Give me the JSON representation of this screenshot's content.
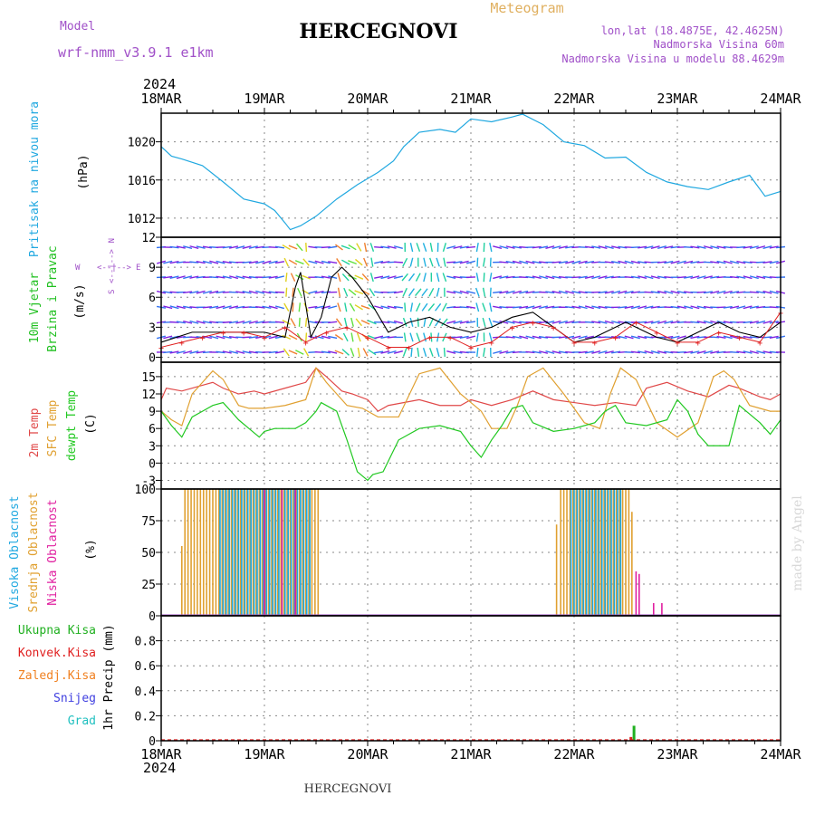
{
  "header": {
    "model_label": "Model",
    "model_name": "wrf-nmm_v3.9.1 e1km",
    "title": "HERCEGNOVI",
    "product": "Meteogram",
    "coords": "lon,lat (18.4875E, 42.4625N)",
    "elevation": "Nadmorska Visina 60m",
    "model_elevation": "Nadmorska Visina u modelu 88.4629m",
    "credit": "made by Angel",
    "footer_title": "HERCEGNOVI"
  },
  "colors": {
    "purple": "#a050c8",
    "orange": "#e0b060",
    "pressure": "#20a8e0",
    "wind_label": "#20c020",
    "t2m": "#e04848",
    "sfc": "#e0a030",
    "dew": "#20c820",
    "high_cloud": "#20a8e0",
    "mid_cloud": "#e0a030",
    "low_cloud": "#e020a0",
    "total_rain": "#20b020",
    "conv_rain": "#e02020",
    "frz_rain": "#f08020",
    "snow": "#4040e0",
    "hail": "#20c0c0",
    "gust": "#e02020"
  },
  "time_axis": {
    "year": "2024",
    "ticks": [
      "18MAR",
      "19MAR",
      "20MAR",
      "21MAR",
      "22MAR",
      "23MAR",
      "24MAR"
    ],
    "bottom_year": "2024"
  },
  "panels": {
    "pressure": {
      "label": "Pritisak na nivou mora",
      "unit": "(hPa)"
    },
    "wind": {
      "label1": "10m Vjetar",
      "label2": "Brzina i Pravac",
      "unit": "(m/s)",
      "compass": {
        "n": "N",
        "s": "S",
        "e": "E",
        "w": "W",
        "arrows": "<--|-->"
      }
    },
    "temperature": {
      "label1": "2m Temp",
      "label2": "SFC Temp",
      "label3": "dewpt Temp",
      "unit": "(C)"
    },
    "cloud": {
      "label1": "Visoka Oblacnost",
      "label2": "Srednja Oblacnost",
      "label3": "Niska Oblacnost",
      "unit": "(%)"
    },
    "precip": {
      "legend": [
        "Ukupna Kisa",
        "Konvek.Kisa",
        "Zaledj.Kisa",
        "Snijeg",
        "Grad"
      ],
      "unit": "1hr Precip (mm)"
    }
  },
  "chart_data": [
    {
      "type": "line",
      "panel": "pressure",
      "x_unit": "days since 18MAR 00Z",
      "xlim": [
        0,
        6
      ],
      "ylim": [
        1010,
        1023
      ],
      "yticks": [
        1012,
        1016,
        1020
      ],
      "series": [
        {
          "x": [
            0,
            0.1,
            0.2,
            0.4,
            0.6,
            0.8,
            1.0,
            1.1,
            1.2,
            1.25,
            1.35,
            1.5,
            1.7,
            1.9,
            2.1,
            2.25,
            2.35,
            2.5,
            2.7,
            2.85,
            3.0,
            3.2,
            3.4,
            3.5,
            3.7,
            3.9,
            4.1,
            4.3,
            4.5,
            4.7,
            4.9,
            5.1,
            5.3,
            5.5,
            5.7,
            5.85,
            6.0
          ],
          "y": [
            1019.5,
            1018.5,
            1018.2,
            1017.5,
            1015.8,
            1014.0,
            1013.5,
            1012.8,
            1011.5,
            1010.8,
            1011.2,
            1012.2,
            1014.0,
            1015.5,
            1016.8,
            1018.0,
            1019.5,
            1021.0,
            1021.3,
            1021.0,
            1022.4,
            1022.1,
            1022.6,
            1022.9,
            1021.8,
            1020.0,
            1019.6,
            1018.3,
            1018.4,
            1016.8,
            1015.8,
            1015.3,
            1015.0,
            1015.8,
            1016.5,
            1014.3,
            1014.8
          ]
        }
      ]
    },
    {
      "type": "line",
      "panel": "temperature",
      "x_unit": "days since 18MAR 00Z",
      "xlim": [
        0,
        6
      ],
      "ylim": [
        -4.5,
        17.5
      ],
      "yticks": [
        -3,
        0,
        3,
        6,
        9,
        12,
        15
      ],
      "series": [
        {
          "name": "2m Temp",
          "x": [
            0,
            0.05,
            0.2,
            0.4,
            0.5,
            0.6,
            0.75,
            0.9,
            1.0,
            1.2,
            1.4,
            1.5,
            1.6,
            1.75,
            1.85,
            2.0,
            2.1,
            2.2,
            2.5,
            2.7,
            2.9,
            3.0,
            3.2,
            3.4,
            3.6,
            3.8,
            4.0,
            4.2,
            4.4,
            4.6,
            4.7,
            4.9,
            5.1,
            5.3,
            5.5,
            5.6,
            5.8,
            5.9,
            6.0
          ],
          "y": [
            11,
            13,
            12.5,
            13.5,
            14,
            13,
            12,
            12.5,
            12,
            13,
            14,
            16.5,
            15,
            12.5,
            12,
            11,
            9,
            10,
            11,
            10,
            10,
            11,
            10,
            11,
            12.5,
            11,
            10.5,
            10,
            10.5,
            10,
            13,
            14,
            12.5,
            11.5,
            13.5,
            13,
            11.5,
            11,
            12
          ]
        },
        {
          "name": "SFC Temp",
          "x": [
            0,
            0.1,
            0.2,
            0.3,
            0.45,
            0.5,
            0.6,
            0.75,
            0.85,
            1.0,
            1.2,
            1.4,
            1.5,
            1.6,
            1.8,
            1.95,
            2.1,
            2.3,
            2.5,
            2.7,
            2.9,
            3.1,
            3.2,
            3.35,
            3.45,
            3.55,
            3.7,
            3.9,
            4.1,
            4.25,
            4.35,
            4.45,
            4.6,
            4.8,
            5.0,
            5.2,
            5.35,
            5.45,
            5.55,
            5.7,
            5.9,
            6.0
          ],
          "y": [
            9,
            7.5,
            6.5,
            12,
            15,
            16,
            14.5,
            10,
            9.5,
            9.5,
            10,
            11,
            16.5,
            14,
            10,
            9.5,
            8,
            8,
            15.5,
            16.5,
            12,
            9,
            6,
            6,
            10,
            15,
            16.5,
            12,
            7,
            6,
            12,
            16.5,
            14.5,
            7,
            4.5,
            7,
            15,
            16,
            14.5,
            10,
            9,
            9
          ]
        },
        {
          "name": "dewpt Temp",
          "x": [
            0,
            0.1,
            0.2,
            0.3,
            0.4,
            0.5,
            0.6,
            0.75,
            0.85,
            0.95,
            1.0,
            1.1,
            1.3,
            1.4,
            1.5,
            1.55,
            1.7,
            1.8,
            1.9,
            2.0,
            2.05,
            2.15,
            2.3,
            2.5,
            2.7,
            2.9,
            3.0,
            3.1,
            3.2,
            3.3,
            3.4,
            3.5,
            3.6,
            3.8,
            4.0,
            4.2,
            4.3,
            4.4,
            4.5,
            4.7,
            4.9,
            5.0,
            5.1,
            5.2,
            5.3,
            5.5,
            5.6,
            5.8,
            5.9,
            6.0
          ],
          "y": [
            9,
            6.5,
            4.5,
            8,
            9,
            10,
            10.5,
            7.5,
            6,
            4.5,
            5.5,
            6,
            6,
            7,
            9,
            10.5,
            9,
            4,
            -1.5,
            -3,
            -2,
            -1.5,
            4,
            6,
            6.5,
            5.5,
            3,
            1,
            4,
            6.5,
            9.5,
            10,
            7,
            5.5,
            6,
            7,
            9,
            10,
            7,
            6.5,
            7.5,
            11,
            9,
            5,
            3,
            3,
            10,
            7,
            5,
            7.5
          ]
        }
      ]
    },
    {
      "type": "bar",
      "panel": "cloud",
      "x_unit": "days since 18MAR 00Z",
      "xlim": [
        0,
        6
      ],
      "ylim": [
        0,
        100
      ],
      "yticks": [
        0,
        25,
        50,
        75,
        100
      ],
      "series": [
        {
          "name": "Srednja Oblacnost",
          "x_range": [
            0.23,
            1.52
          ],
          "spacing": 0.03,
          "value": 100
        },
        {
          "name": "Visoka Oblacnost",
          "x_range": [
            0.57,
            1.45
          ],
          "spacing": 0.03,
          "value": 100
        },
        {
          "name": "Niska Oblacnost",
          "x_values": [
            1.0,
            1.17,
            1.3
          ],
          "value": 100
        },
        {
          "name": "Srednja Oblacnost 22MAR",
          "x_range": [
            3.87,
            4.55
          ],
          "spacing": 0.03,
          "value": 100
        },
        {
          "name": "Visoka Oblacnost 22MAR",
          "x_range": [
            3.97,
            4.47
          ],
          "spacing": 0.03,
          "value": 100
        },
        {
          "name": "Niska Oblacnost 22MAR",
          "x_values": [
            4.6,
            4.63,
            4.77
          ],
          "values": [
            35,
            33,
            10
          ]
        }
      ]
    },
    {
      "type": "bar",
      "panel": "precip",
      "x_unit": "days since 18MAR 00Z",
      "xlim": [
        0,
        6
      ],
      "ylim": [
        0,
        1.0
      ],
      "yticks": [
        0,
        0.2,
        0.4,
        0.6,
        0.8
      ],
      "series": [
        {
          "name": "Ukupna Kisa",
          "x": [
            4.58
          ],
          "values": [
            0.12
          ]
        },
        {
          "name": "Konvek.Kisa",
          "x": [
            4.55
          ],
          "values": [
            0.03
          ]
        }
      ]
    },
    {
      "type": "line",
      "panel": "wind",
      "x_unit": "days since 18MAR 00Z",
      "xlim": [
        0,
        6
      ],
      "ylim": [
        -0.5,
        12
      ],
      "yticks": [
        0,
        3,
        6,
        9,
        12
      ],
      "series": [
        {
          "name": "wind speed",
          "x": [
            0,
            0.3,
            0.6,
            0.9,
            1.0,
            1.2,
            1.3,
            1.35,
            1.45,
            1.55,
            1.65,
            1.75,
            1.85,
            2.0,
            2.2,
            2.4,
            2.6,
            2.8,
            3.0,
            3.2,
            3.4,
            3.6,
            3.8,
            4.0,
            4.2,
            4.4,
            4.5,
            4.6,
            4.8,
            5.0,
            5.2,
            5.4,
            5.6,
            5.8,
            6.0
          ],
          "y": [
            1.5,
            2.5,
            2.5,
            2.5,
            2.5,
            2.0,
            7.0,
            8.5,
            2.0,
            4.0,
            8.0,
            9.0,
            8.0,
            6.0,
            2.5,
            3.5,
            4.0,
            3.0,
            2.5,
            3.0,
            4.0,
            4.5,
            3.0,
            1.5,
            2.0,
            3.0,
            3.5,
            3.0,
            2.0,
            1.5,
            2.5,
            3.5,
            2.5,
            2.0,
            3.5
          ]
        },
        {
          "name": "gust",
          "x": [
            0,
            0.2,
            0.4,
            0.6,
            0.8,
            1.0,
            1.2,
            1.4,
            1.6,
            1.8,
            2.0,
            2.2,
            2.4,
            2.6,
            2.8,
            3.0,
            3.2,
            3.4,
            3.6,
            3.8,
            4.0,
            4.2,
            4.4,
            4.6,
            4.8,
            5.0,
            5.2,
            5.4,
            5.6,
            5.8,
            6.0
          ],
          "y": [
            1.0,
            1.5,
            2.0,
            2.5,
            2.5,
            2.0,
            3.0,
            1.5,
            2.5,
            3.0,
            2.0,
            1.0,
            1.0,
            2.0,
            2.0,
            1.0,
            1.5,
            3.0,
            3.5,
            3.0,
            1.5,
            1.5,
            2.0,
            3.5,
            2.5,
            1.5,
            1.5,
            2.5,
            2.0,
            1.5,
            4.5
          ]
        }
      ]
    }
  ]
}
